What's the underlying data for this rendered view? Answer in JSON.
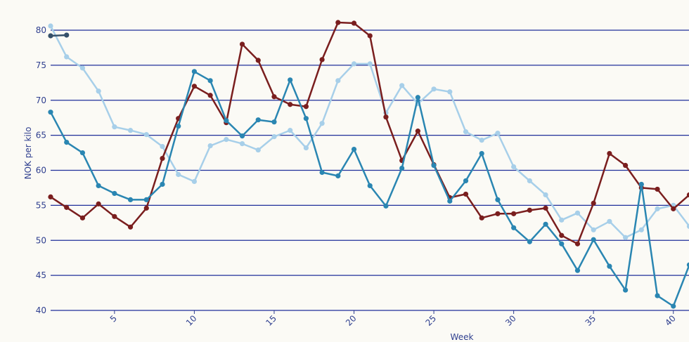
{
  "chart_data": {
    "type": "line",
    "title": "",
    "xlabel": "Week",
    "ylabel": "NOK per kilo",
    "xlim": [
      1,
      41
    ],
    "ylim": [
      40,
      80
    ],
    "y_ticks": [
      40,
      45,
      50,
      55,
      60,
      65,
      70,
      75,
      80
    ],
    "x_ticks": [
      5,
      10,
      15,
      20,
      25,
      30,
      35,
      40
    ],
    "grid": "horizontal",
    "series": [
      {
        "color": "#a7cfe9",
        "x": [
          1,
          2,
          3,
          4,
          5,
          6,
          7,
          8,
          9,
          10,
          11,
          12,
          13,
          14,
          15,
          16,
          17,
          18,
          19,
          20,
          21,
          22,
          23,
          24,
          25,
          26,
          27,
          28,
          29,
          30,
          31,
          32,
          33,
          34,
          35,
          36,
          37,
          38,
          39,
          40,
          41
        ],
        "y": [
          80.6,
          76.2,
          74.6,
          71.3,
          66.2,
          65.7,
          65.1,
          63.4,
          59.4,
          58.4,
          63.5,
          64.4,
          63.8,
          62.9,
          64.8,
          65.7,
          63.2,
          66.7,
          72.8,
          75.2,
          75.2,
          68.2,
          72.1,
          69.5,
          71.6,
          71.2,
          65.5,
          64.3,
          65.3,
          60.5,
          58.5,
          56.5,
          52.9,
          53.9,
          51.5,
          52.7,
          50.4,
          51.5,
          54.5,
          55.0,
          52.0
        ]
      },
      {
        "color": "#7a1e1e",
        "x": [
          1,
          2,
          3,
          4,
          5,
          6,
          7,
          8,
          9,
          10,
          11,
          12,
          13,
          14,
          15,
          16,
          17,
          18,
          19,
          20,
          21,
          22,
          23,
          24,
          25,
          26,
          27,
          28,
          29,
          30,
          31,
          32,
          33,
          34,
          35,
          36,
          37,
          38,
          39,
          40,
          41
        ],
        "y": [
          56.2,
          54.7,
          53.2,
          55.2,
          53.4,
          51.9,
          54.6,
          61.7,
          67.4,
          72.0,
          70.7,
          66.8,
          78.0,
          75.7,
          70.5,
          69.4,
          69.1,
          75.8,
          81.1,
          81.0,
          79.2,
          67.6,
          61.4,
          65.6,
          60.8,
          56.1,
          56.6,
          53.2,
          53.8,
          53.8,
          54.3,
          54.6,
          50.7,
          49.5,
          55.3,
          62.4,
          60.7,
          57.5,
          57.3,
          54.5,
          56.5
        ]
      },
      {
        "color": "#2a86b2",
        "x": [
          1,
          2,
          3,
          4,
          5,
          6,
          7,
          8,
          9,
          10,
          11,
          12,
          13,
          14,
          15,
          16,
          17,
          18,
          19,
          20,
          21,
          22,
          23,
          24,
          25,
          26,
          27,
          28,
          29,
          30,
          31,
          32,
          33,
          34,
          35,
          36,
          37,
          38,
          39,
          40,
          41
        ],
        "y": [
          68.3,
          64.0,
          62.5,
          57.8,
          56.7,
          55.8,
          55.8,
          58.0,
          66.3,
          74.1,
          72.8,
          67.1,
          64.9,
          67.2,
          66.9,
          72.9,
          67.4,
          59.7,
          59.2,
          63.0,
          57.8,
          54.9,
          60.3,
          70.4,
          60.7,
          55.6,
          58.5,
          62.4,
          55.8,
          51.8,
          49.8,
          52.3,
          49.5,
          45.7,
          50.1,
          46.3,
          42.9,
          58.0,
          42.1,
          40.6,
          46.5
        ]
      },
      {
        "color": "#34506a",
        "x": [
          1,
          2
        ],
        "y": [
          79.2,
          79.3
        ]
      }
    ]
  }
}
